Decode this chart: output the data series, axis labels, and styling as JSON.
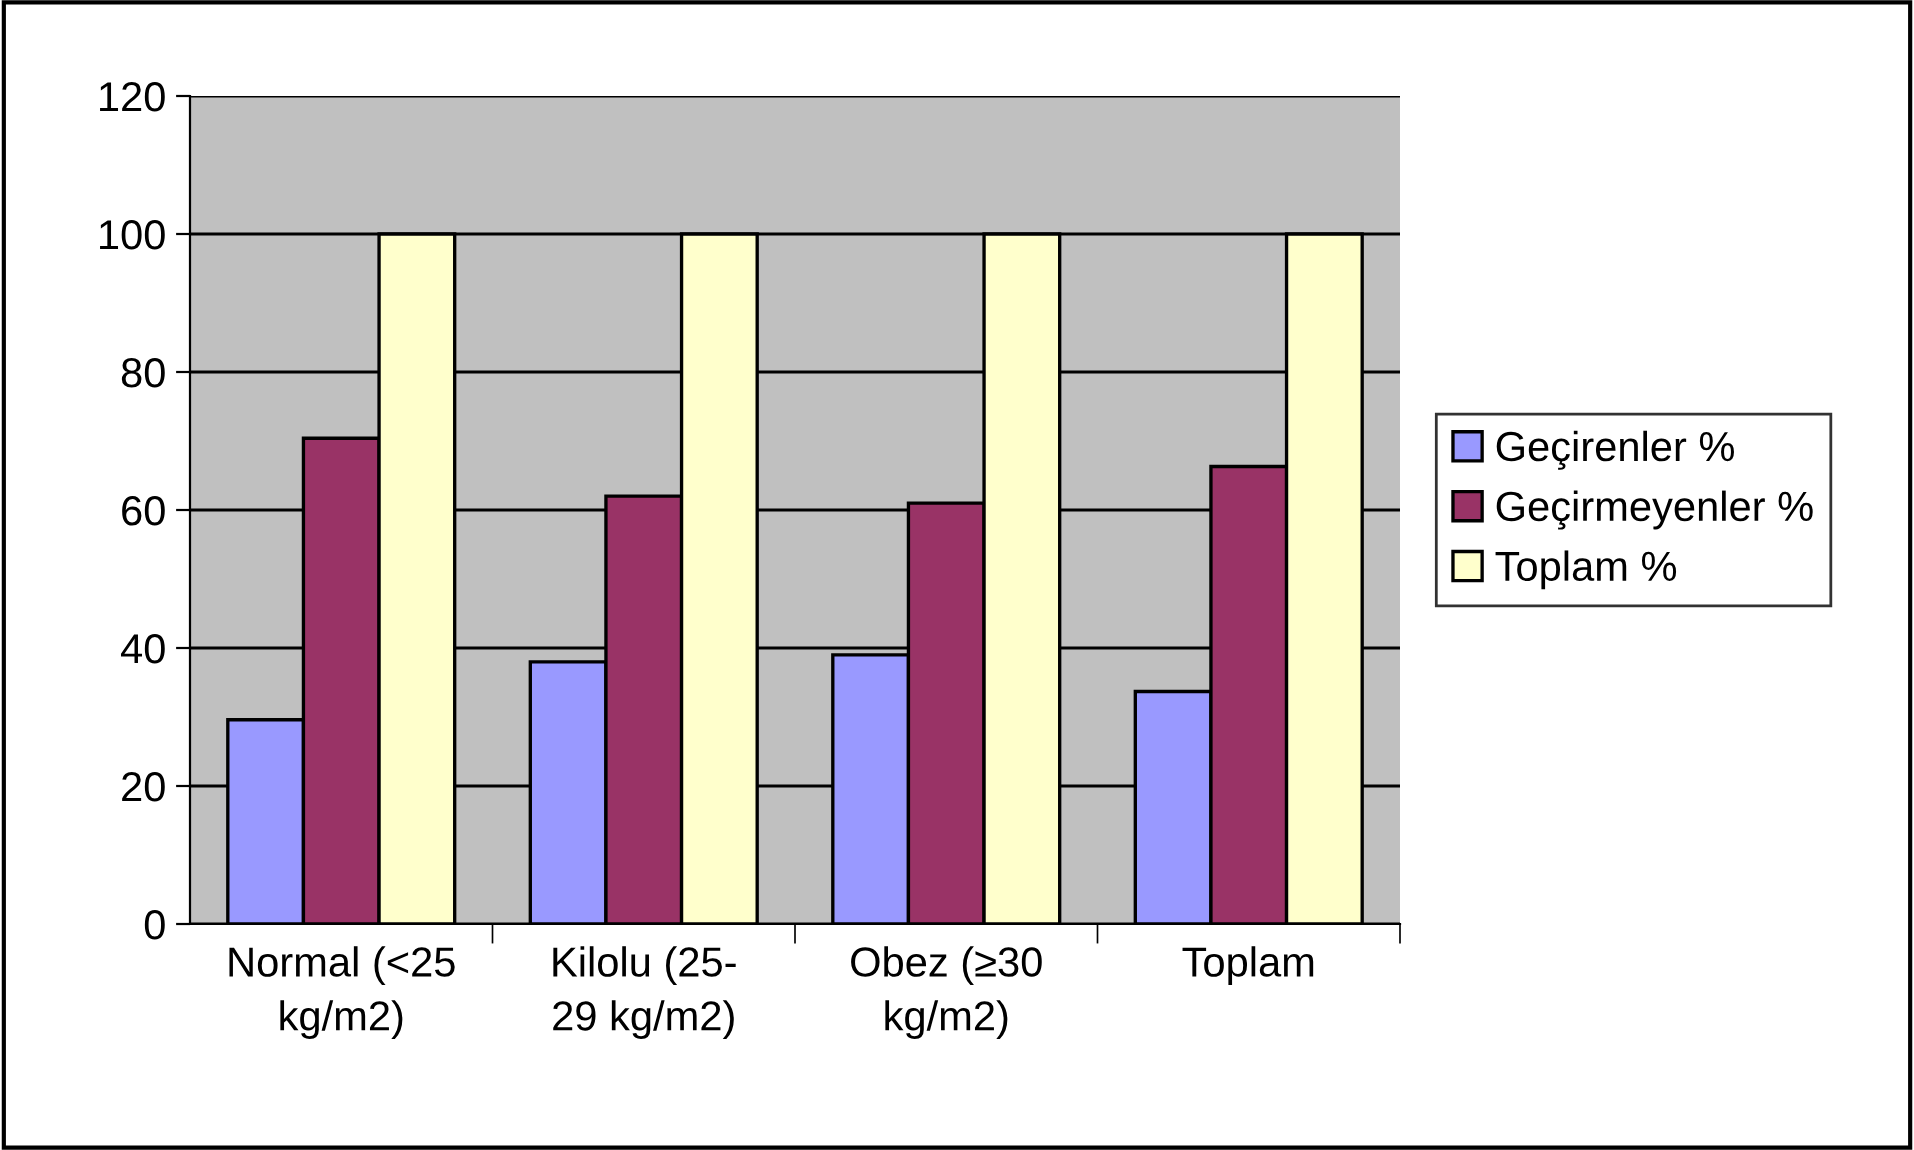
{
  "chart_data": {
    "type": "bar",
    "categories": [
      "Normal (<25\nkg/m2)",
      "Kilolu (25-\n29 kg/m2)",
      "Obez (≥30\nkg/m2)",
      "Toplam"
    ],
    "series": [
      {
        "name": "Geçirenler %",
        "color": "#9999ff",
        "values": [
          29.6,
          38,
          39,
          33.7
        ]
      },
      {
        "name": "Geçirmeyenler %",
        "color": "#993366",
        "values": [
          70.4,
          62,
          61,
          66.3
        ]
      },
      {
        "name": "Toplam %",
        "color": "#ffffcc",
        "values": [
          100,
          100,
          100,
          100
        ]
      }
    ],
    "ylim": [
      0,
      120
    ],
    "yticks": [
      0,
      20,
      40,
      60,
      80,
      100,
      120
    ],
    "grid": "y",
    "legend": "right"
  }
}
